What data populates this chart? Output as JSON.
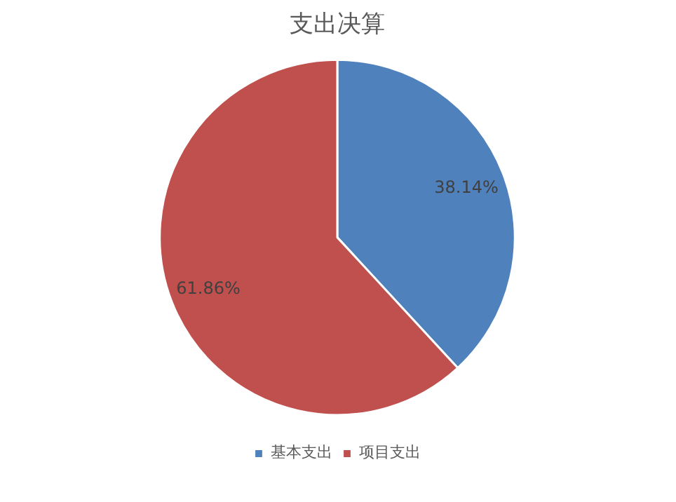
{
  "chart_data": {
    "type": "pie",
    "title": "支出决算",
    "categories": [
      "基本支出",
      "项目支出"
    ],
    "values": [
      38.14,
      61.86
    ],
    "colors": [
      "#4f81bd",
      "#c0504d"
    ],
    "value_labels": [
      "38.14%",
      "61.86%"
    ],
    "legend": "bottom"
  }
}
